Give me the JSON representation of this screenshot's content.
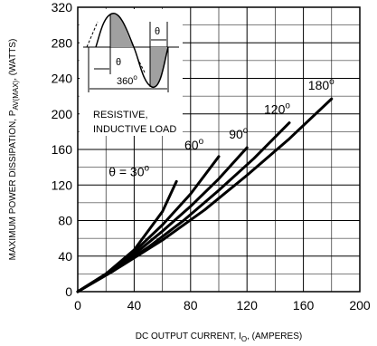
{
  "chart_data": {
    "type": "line",
    "xlabel": "DC OUTPUT CURRENT, I",
    "xlabel_sub": "O",
    "xlabel_suffix": ", (AMPERES)",
    "ylabel": "MAXIMUM POWER DISSIPATION, P",
    "ylabel_sub": "AV(MAX)",
    "ylabel_suffix": ", (WATTS)",
    "xlim": [
      0,
      200
    ],
    "ylim": [
      0,
      320
    ],
    "x_ticks": [
      0,
      40,
      80,
      120,
      160,
      200
    ],
    "y_ticks": [
      0,
      40,
      80,
      120,
      160,
      200,
      240,
      280,
      320
    ],
    "grid": true,
    "series": [
      {
        "name": "θ = 30",
        "x": [
          0,
          20,
          40,
          60,
          70
        ],
        "y": [
          0,
          20,
          47,
          90,
          124
        ]
      },
      {
        "name": "60",
        "x": [
          0,
          20,
          40,
          60,
          80,
          100
        ],
        "y": [
          0,
          20,
          45,
          75,
          110,
          152
        ]
      },
      {
        "name": "90",
        "x": [
          0,
          20,
          40,
          60,
          80,
          100,
          120
        ],
        "y": [
          0,
          19,
          42,
          68,
          96,
          127,
          162
        ]
      },
      {
        "name": "120",
        "x": [
          0,
          25,
          50,
          75,
          100,
          125,
          150
        ],
        "y": [
          0,
          23,
          50,
          80,
          114,
          150,
          190
        ]
      },
      {
        "name": "180",
        "x": [
          0,
          30,
          60,
          90,
          120,
          150,
          180
        ],
        "y": [
          0,
          28,
          58,
          92,
          131,
          172,
          217
        ]
      }
    ],
    "series_labels": [
      {
        "text": "θ = 30",
        "sup": "o"
      },
      {
        "text": "60",
        "sup": "o"
      },
      {
        "text": "90",
        "sup": "o"
      },
      {
        "text": "120",
        "sup": "o"
      },
      {
        "text": "180",
        "sup": "o"
      }
    ],
    "inset": {
      "theta_top": "θ",
      "theta_left": "θ",
      "period": "360",
      "period_sup": "o",
      "load_line1": "RESISTIVE,",
      "load_line2": "INDUCTIVE LOAD"
    }
  }
}
